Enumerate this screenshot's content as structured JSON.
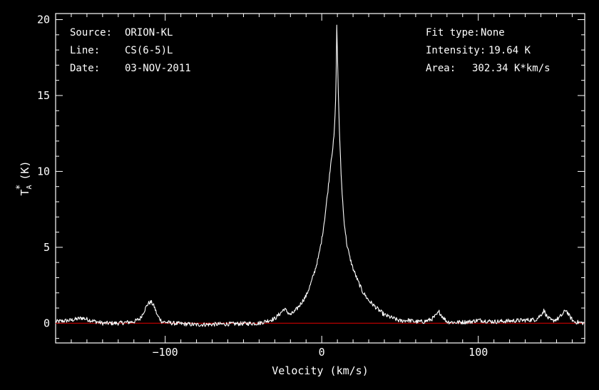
{
  "chart_data": {
    "type": "line",
    "xlabel": "Velocity (km/s)",
    "ylabel": "T",
    "ylabel_sub": "A",
    "ylabel_sup": "*",
    "ylabel_unit": "(K)",
    "xlim": [
      -170,
      168
    ],
    "ylim": [
      -1.3,
      20.4
    ],
    "x_ticks": [
      -100,
      0,
      100
    ],
    "y_ticks": [
      0,
      5,
      10,
      15,
      20
    ],
    "x_tick_labels": [
      "−100",
      "0",
      "100"
    ],
    "y_tick_labels": [
      "0",
      "5",
      "10",
      "15",
      "20"
    ],
    "grid": false,
    "baseline": {
      "y": 0,
      "color": "#cc0000"
    },
    "series": [
      {
        "color": "#ffffff",
        "x": [
          -170,
          -160,
          -153,
          -148,
          -140,
          -130,
          -120,
          -116,
          -113,
          -111,
          -109,
          -107,
          -105,
          -102,
          -95,
          -80,
          -60,
          -40,
          -30,
          -26,
          -24,
          -22,
          -20,
          -17,
          -14,
          -10,
          -7,
          -4,
          -2,
          0,
          2,
          4,
          5,
          6,
          7,
          8,
          9,
          9.6,
          10.5,
          11.5,
          12.5,
          14,
          16,
          18,
          20,
          23,
          26,
          30,
          35,
          40,
          45,
          50,
          55,
          60,
          65,
          70,
          73,
          75,
          77,
          80,
          85,
          95,
          100,
          110,
          120,
          130,
          137,
          140,
          142,
          144,
          147,
          151,
          154,
          156,
          158,
          161,
          168
        ],
        "y": [
          0.1,
          0.2,
          0.35,
          0.2,
          0.0,
          0.0,
          0.1,
          0.3,
          0.9,
          1.3,
          1.4,
          1.1,
          0.5,
          0.1,
          0.0,
          -0.1,
          -0.05,
          0.0,
          0.3,
          0.7,
          0.95,
          0.75,
          0.55,
          0.8,
          1.2,
          1.8,
          2.6,
          3.6,
          4.4,
          5.5,
          7.0,
          8.8,
          9.8,
          10.8,
          11.5,
          12.5,
          15.0,
          19.64,
          15.5,
          12.0,
          9.5,
          7.0,
          5.2,
          4.3,
          3.6,
          2.8,
          2.1,
          1.5,
          1.0,
          0.55,
          0.35,
          0.15,
          0.2,
          0.1,
          0.1,
          0.25,
          0.5,
          0.75,
          0.45,
          0.1,
          0.05,
          0.1,
          0.2,
          0.1,
          0.15,
          0.2,
          0.25,
          0.55,
          0.85,
          0.4,
          0.15,
          0.3,
          0.6,
          0.9,
          0.5,
          0.1,
          0.0
        ]
      }
    ]
  },
  "annotations": {
    "left": [
      {
        "key": "Source:",
        "value": "ORION-KL"
      },
      {
        "key": "Line:",
        "value": "CS(6-5)L"
      },
      {
        "key": "Date:",
        "value": "03-NOV-2011"
      }
    ],
    "right": [
      {
        "key": "Fit type:",
        "value": "None"
      },
      {
        "key": "Intensity:",
        "value": "19.64 K"
      },
      {
        "key": "Area:",
        "value": "302.34 K*km/s"
      }
    ]
  }
}
